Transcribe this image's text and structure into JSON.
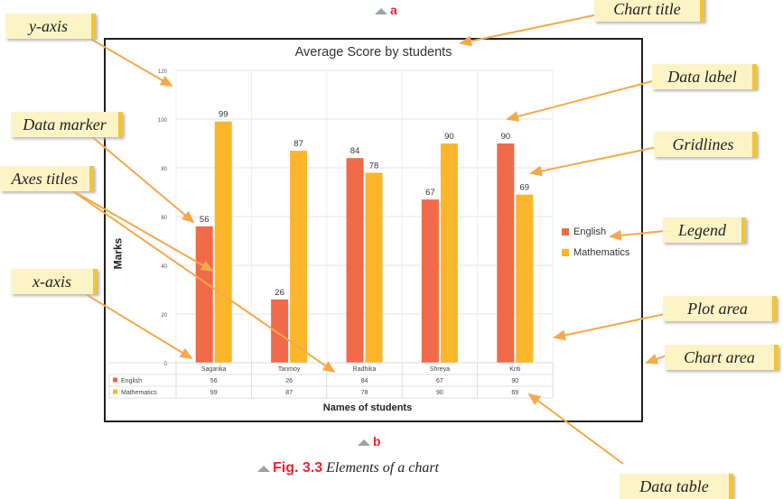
{
  "chart_data": {
    "type": "bar",
    "title": "Average Score by students",
    "xlabel": "Names of students",
    "ylabel": "Marks",
    "ylim": [
      0,
      120
    ],
    "yticks": [
      0,
      20,
      40,
      60,
      80,
      100,
      120
    ],
    "categories": [
      "Saganka",
      "Tanmoy",
      "Radhika",
      "Shreya",
      "Kriti"
    ],
    "series": [
      {
        "name": "English",
        "color": "#f06a4a",
        "values": [
          56,
          26,
          84,
          67,
          90
        ]
      },
      {
        "name": "Mathematics",
        "color": "#fcb62c",
        "values": [
          99,
          87,
          78,
          90,
          69
        ]
      }
    ],
    "grid": true,
    "legend_position": "right",
    "data_table": true
  },
  "markers": {
    "top": "a",
    "bottom": "b"
  },
  "caption": {
    "fig": "Fig. 3.3",
    "text": "Elements of a chart"
  },
  "callouts": {
    "y_axis": "y-axis",
    "data_marker": "Data marker",
    "axes_titles": "Axes titles",
    "x_axis": "x-axis",
    "chart_title": "Chart title",
    "data_label": "Data label",
    "gridlines": "Gridlines",
    "legend": "Legend",
    "plot_area": "Plot area",
    "chart_area": "Chart area",
    "data_table": "Data table"
  },
  "colors": {
    "callout_bg": "#fdf4c6",
    "arrow": "#f5a94a",
    "accent": "#e6262f"
  }
}
